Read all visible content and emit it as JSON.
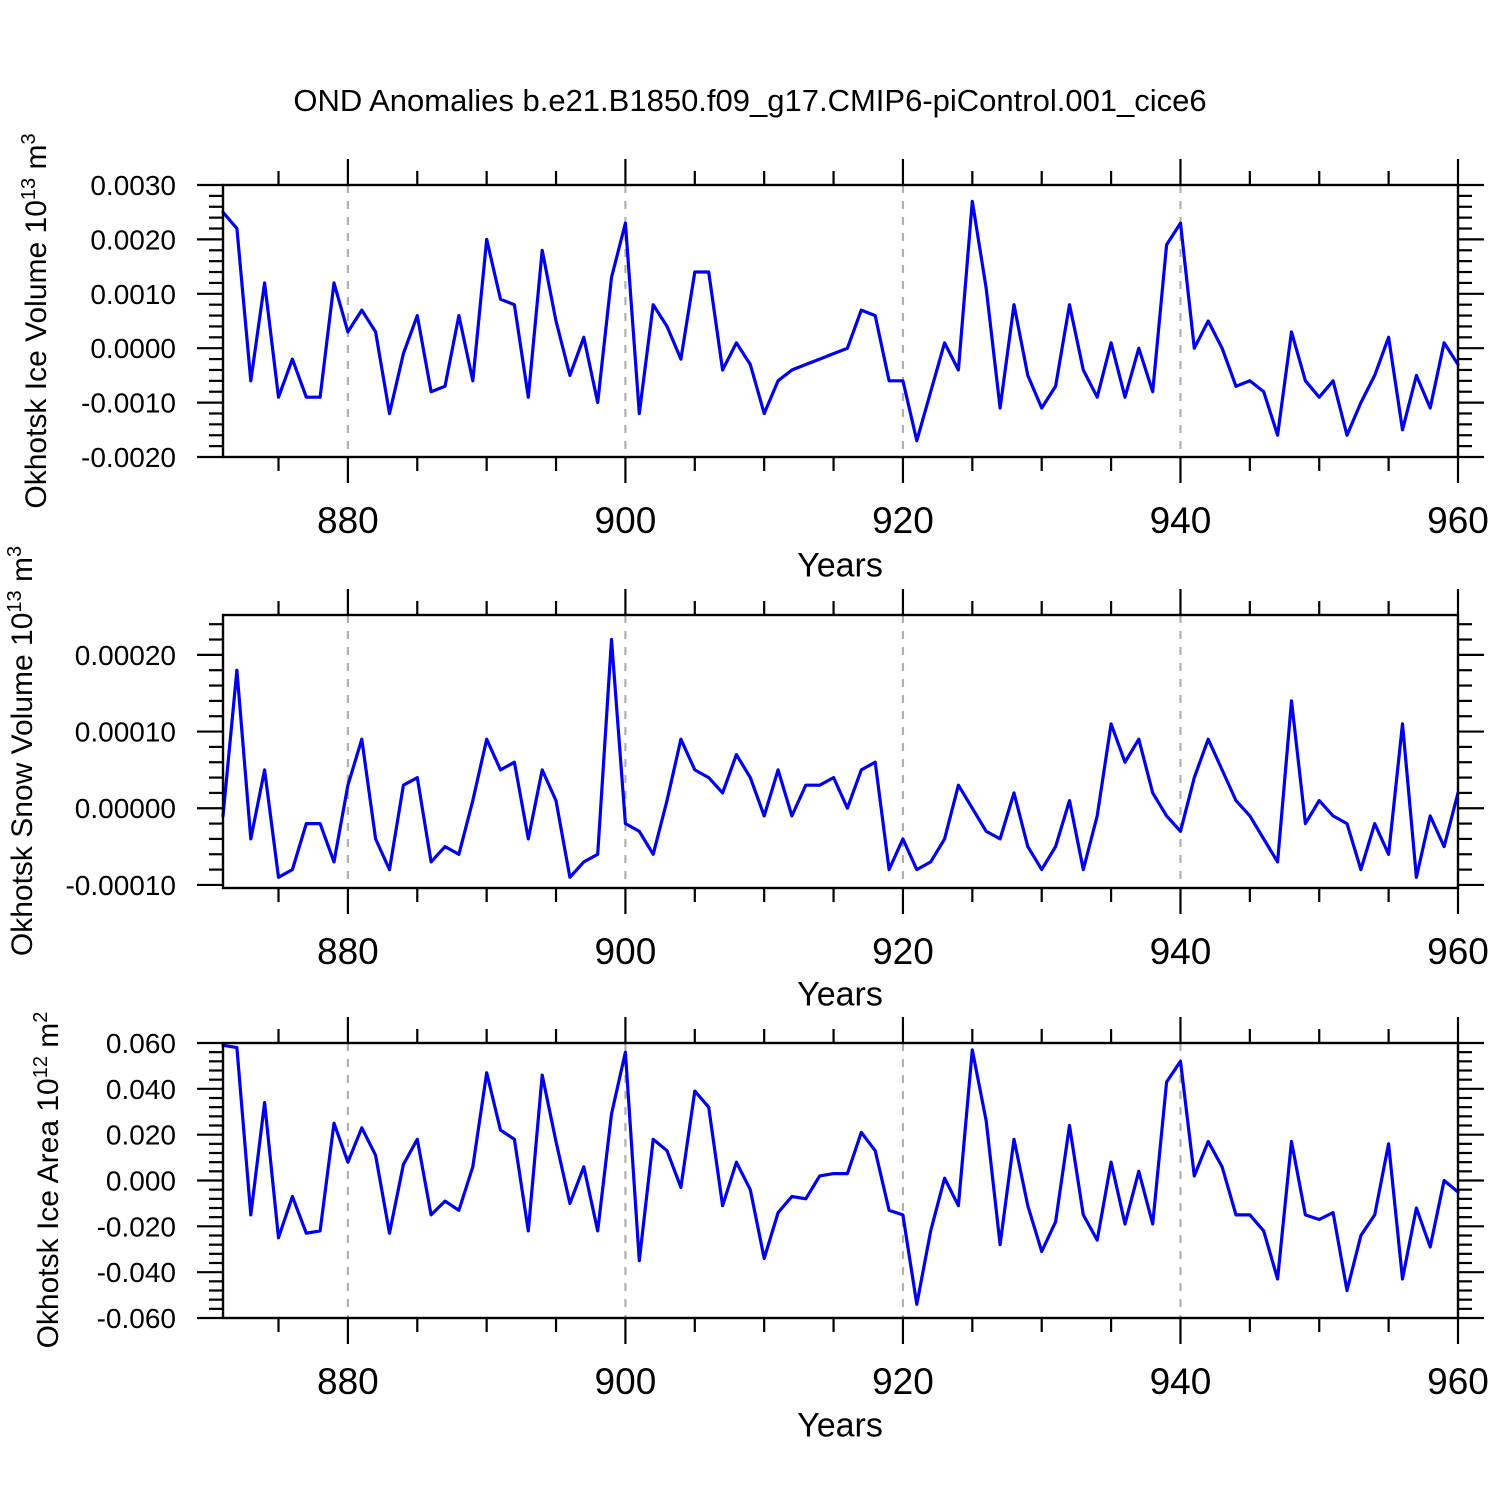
{
  "title": "OND Anomalies b.e21.B1850.f09_g17.CMIP6-piControl.001_cice6",
  "axis": {
    "x_label": "Years",
    "x_tick_labels": [
      "880",
      "900",
      "920",
      "940",
      "960"
    ]
  },
  "panels": [
    {
      "name": "okhotsk-ice-volume",
      "y_label_parts": {
        "main": "Okhotsk Ice Volume 10",
        "exp": "13",
        "unit": " m",
        "unit_exp": "3"
      },
      "y_tick_labels": [
        "0.0030",
        "0.0020",
        "0.0010",
        "0.0000",
        "-0.0010",
        "-0.0020"
      ]
    },
    {
      "name": "okhotsk-snow-volume",
      "y_label_parts": {
        "main": "Okhotsk Snow Volume 10",
        "exp": "13",
        "unit": " m",
        "unit_exp": "3"
      },
      "y_tick_labels": [
        "0.00020",
        "0.00010",
        "0.00000",
        "-0.00010"
      ]
    },
    {
      "name": "okhotsk-ice-area",
      "y_label_parts": {
        "main": "Okhotsk Ice Area 10",
        "exp": "12",
        "unit": " m",
        "unit_exp": "2"
      },
      "y_tick_labels": [
        "0.060",
        "0.040",
        "0.020",
        "0.000",
        "-0.020",
        "-0.040",
        "-0.060"
      ]
    }
  ],
  "style": {
    "line_color": "#0000EE",
    "frame_color": "#000000",
    "grid_color": "#b0b0b0",
    "background": "#ffffff"
  },
  "chart_data": {
    "type": "line",
    "title": "OND Anomalies b.e21.B1850.f09_g17.CMIP6-piControl.001_cice6",
    "xlabel": "Years",
    "x_range": [
      871,
      960
    ],
    "x_major_ticks": [
      880,
      900,
      920,
      940,
      960
    ],
    "x_minor_tick_step": 5,
    "grid_lines_x": [
      880,
      900,
      920,
      940
    ],
    "grid_style": "dashed",
    "years": [
      871,
      872,
      873,
      874,
      875,
      876,
      877,
      878,
      879,
      880,
      881,
      882,
      883,
      884,
      885,
      886,
      887,
      888,
      889,
      890,
      891,
      892,
      893,
      894,
      895,
      896,
      897,
      898,
      899,
      900,
      901,
      902,
      903,
      904,
      905,
      906,
      907,
      908,
      909,
      910,
      911,
      912,
      913,
      914,
      915,
      916,
      917,
      918,
      919,
      920,
      921,
      922,
      923,
      924,
      925,
      926,
      927,
      928,
      929,
      930,
      931,
      932,
      933,
      934,
      935,
      936,
      937,
      938,
      939,
      940,
      941,
      942,
      943,
      944,
      945,
      946,
      947,
      948,
      949,
      950,
      951,
      952,
      953,
      954,
      955,
      956,
      957,
      958,
      959,
      960
    ],
    "series": [
      {
        "name": "Okhotsk Ice Volume 10^13 m^3",
        "ylim": [
          -0.002,
          0.003
        ],
        "y_major_ticks": [
          0.003,
          0.002,
          0.001,
          0,
          -0.001,
          -0.002
        ],
        "y_minor_tick_step": 0.0002,
        "values": [
          0.0025,
          0.0022,
          -0.0006,
          0.0012,
          -0.0009,
          -0.0002,
          -0.0009,
          -0.0009,
          0.0012,
          0.0003,
          0.0007,
          0.0003,
          -0.0012,
          -0.0001,
          0.0006,
          -0.0008,
          -0.0007,
          0.0006,
          -0.0006,
          0.002,
          0.0009,
          0.0008,
          -0.0009,
          0.0018,
          0.0005,
          -0.0005,
          0.0002,
          -0.001,
          0.0013,
          0.0023,
          -0.0012,
          0.0008,
          0.0004,
          -0.0002,
          0.0014,
          0.0014,
          -0.0004,
          0.0001,
          -0.0003,
          -0.0012,
          -0.0006,
          -0.0004,
          -0.0003,
          -0.0002,
          -0.0001,
          0.0,
          0.0007,
          0.0006,
          -0.0006,
          -0.0006,
          -0.0017,
          -0.0008,
          0.0001,
          -0.0004,
          0.0027,
          0.0011,
          -0.0011,
          0.0008,
          -0.0005,
          -0.0011,
          -0.0007,
          0.0008,
          -0.0004,
          -0.0009,
          0.0001,
          -0.0009,
          0.0,
          -0.0008,
          0.0019,
          0.0023,
          0.0,
          0.0005,
          0.0,
          -0.0007,
          -0.0006,
          -0.0008,
          -0.0016,
          0.0003,
          -0.0006,
          -0.0009,
          -0.0006,
          -0.0016,
          -0.001,
          -0.0005,
          0.0002,
          -0.0015,
          -0.0005,
          -0.0011,
          0.0001,
          -0.0003
        ]
      },
      {
        "name": "Okhotsk Snow Volume 10^13 m^3",
        "ylim": [
          -0.000104,
          0.000252
        ],
        "y_major_ticks": [
          0.0002,
          0.0001,
          0,
          -0.0001
        ],
        "y_minor_tick_step": 2e-05,
        "values": [
          -1e-05,
          0.00018,
          -4e-05,
          5e-05,
          -9e-05,
          -8e-05,
          -2e-05,
          -2e-05,
          -7e-05,
          3e-05,
          9e-05,
          -4e-05,
          -8e-05,
          3e-05,
          4e-05,
          -7e-05,
          -5e-05,
          -6e-05,
          1e-05,
          9e-05,
          5e-05,
          6e-05,
          -4e-05,
          5e-05,
          1e-05,
          -9e-05,
          -7e-05,
          -6e-05,
          0.00022,
          -2e-05,
          -3e-05,
          -6e-05,
          1e-05,
          9e-05,
          5e-05,
          4e-05,
          2e-05,
          7e-05,
          4e-05,
          -1e-05,
          5e-05,
          -1e-05,
          3e-05,
          3e-05,
          4e-05,
          0.0,
          5e-05,
          6e-05,
          -8e-05,
          -4e-05,
          -8e-05,
          -7e-05,
          -4e-05,
          3e-05,
          0.0,
          -3e-05,
          -4e-05,
          2e-05,
          -5e-05,
          -8e-05,
          -5e-05,
          1e-05,
          -8e-05,
          -1e-05,
          0.00011,
          6e-05,
          9e-05,
          2e-05,
          -1e-05,
          -3e-05,
          4e-05,
          9e-05,
          5e-05,
          1e-05,
          -1e-05,
          -4e-05,
          -7e-05,
          0.00014,
          -2e-05,
          1e-05,
          -1e-05,
          -2e-05,
          -8e-05,
          -2e-05,
          -6e-05,
          0.00011,
          -9e-05,
          -1e-05,
          -5e-05,
          2e-05
        ]
      },
      {
        "name": "Okhotsk Ice Area 10^12 m^2",
        "ylim": [
          -0.06,
          0.06
        ],
        "y_major_ticks": [
          0.06,
          0.04,
          0.02,
          0,
          -0.02,
          -0.04,
          -0.06
        ],
        "y_minor_tick_step": 0.004,
        "values": [
          0.059,
          0.058,
          -0.015,
          0.034,
          -0.025,
          -0.007,
          -0.023,
          -0.022,
          0.025,
          0.008,
          0.023,
          0.011,
          -0.023,
          0.007,
          0.018,
          -0.015,
          -0.009,
          -0.013,
          0.006,
          0.047,
          0.022,
          0.018,
          -0.022,
          0.046,
          0.017,
          -0.01,
          0.006,
          -0.022,
          0.029,
          0.056,
          -0.035,
          0.018,
          0.013,
          -0.003,
          0.039,
          0.032,
          -0.011,
          0.008,
          -0.004,
          -0.034,
          -0.014,
          -0.007,
          -0.008,
          0.002,
          0.003,
          0.003,
          0.021,
          0.013,
          -0.013,
          -0.015,
          -0.054,
          -0.022,
          0.001,
          -0.011,
          0.057,
          0.026,
          -0.028,
          0.018,
          -0.011,
          -0.031,
          -0.018,
          0.024,
          -0.015,
          -0.026,
          0.008,
          -0.019,
          0.004,
          -0.019,
          0.043,
          0.052,
          0.002,
          0.017,
          0.006,
          -0.015,
          -0.015,
          -0.022,
          -0.043,
          0.017,
          -0.015,
          -0.017,
          -0.014,
          -0.048,
          -0.024,
          -0.015,
          0.016,
          -0.043,
          -0.012,
          -0.029,
          0.0,
          -0.005
        ]
      }
    ]
  }
}
